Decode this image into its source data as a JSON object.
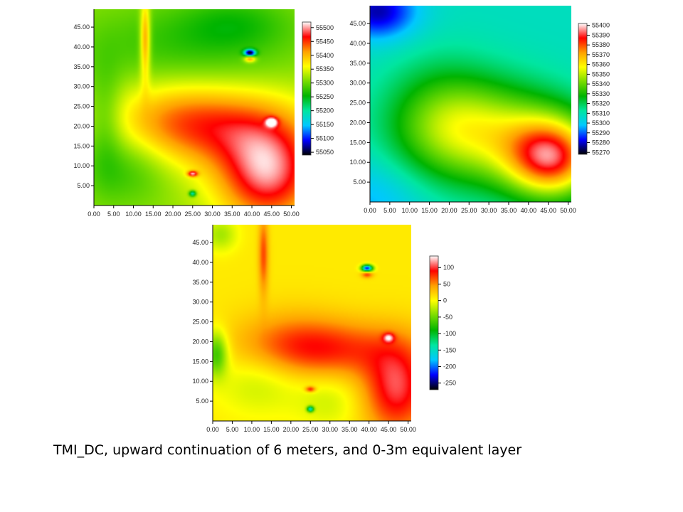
{
  "caption": "TMI_DC, upward continuation of 6 meters, and 0-3m equivalent layer",
  "chart_data": [
    {
      "type": "heatmap",
      "panel": "tmi-dc",
      "title": "",
      "xlabel": "",
      "ylabel": "",
      "xlim": [
        0,
        50.8
      ],
      "ylim": [
        0,
        49.5
      ],
      "x_ticks": [
        "0.00",
        "5.00",
        "10.00",
        "15.00",
        "20.00",
        "25.00",
        "30.00",
        "35.00",
        "40.00",
        "45.00",
        "50.00"
      ],
      "y_ticks": [
        "5.00",
        "10.00",
        "15.00",
        "20.00",
        "25.00",
        "30.00",
        "35.00",
        "40.00",
        "45.00"
      ],
      "colorbar": {
        "range": [
          55040,
          55520
        ],
        "ticks": [
          "55500",
          "55450",
          "55400",
          "55350",
          "55300",
          "55250",
          "55200",
          "55150",
          "55100",
          "55050"
        ],
        "colors": [
          "#000000",
          "#0000ff",
          "#00c8ff",
          "#00e6a0",
          "#00b400",
          "#78dc00",
          "#ffff00",
          "#ffa000",
          "#ff0000",
          "#ffffff"
        ]
      },
      "field": {
        "base": 55320,
        "features": [
          {
            "kind": "gauss",
            "x": 44,
            "y": 8,
            "sx": 9,
            "sy": 9,
            "a": 170
          },
          {
            "kind": "gauss",
            "x": 30,
            "y": 20,
            "sx": 16,
            "sy": 7,
            "a": 100
          },
          {
            "kind": "gauss",
            "x": 20,
            "y": 22,
            "sx": 12,
            "sy": 8,
            "a": 40
          },
          {
            "kind": "gauss",
            "x": 8,
            "y": 10,
            "sx": 8,
            "sy": 7,
            "a": -50
          },
          {
            "kind": "gauss",
            "x": 22,
            "y": 40,
            "sx": 20,
            "sy": 8,
            "a": -45
          },
          {
            "kind": "gauss",
            "x": 36,
            "y": 46,
            "sx": 10,
            "sy": 5,
            "a": -40
          },
          {
            "kind": "gauss",
            "x": 3,
            "y": 22,
            "sx": 3,
            "sy": 10,
            "a": -40
          },
          {
            "kind": "gauss",
            "x": 13,
            "y": 42,
            "sx": 0.9,
            "sy": 7,
            "a": 120
          },
          {
            "kind": "gauss",
            "x": 39.5,
            "y": 38.5,
            "sx": 1,
            "sy": 0.6,
            "a": -260
          },
          {
            "kind": "gauss",
            "x": 39.5,
            "y": 37,
            "sx": 1,
            "sy": 0.6,
            "a": 120
          },
          {
            "kind": "gauss",
            "x": 25,
            "y": 8,
            "sx": 0.9,
            "sy": 0.5,
            "a": 150
          },
          {
            "kind": "gauss",
            "x": 25,
            "y": 3,
            "sx": 0.6,
            "sy": 0.5,
            "a": -150
          },
          {
            "kind": "gauss",
            "x": 45,
            "y": 21,
            "sx": 1,
            "sy": 0.8,
            "a": 150
          }
        ]
      }
    },
    {
      "type": "heatmap",
      "panel": "upward-continuation-6m",
      "title": "",
      "xlabel": "",
      "ylabel": "",
      "xlim": [
        0,
        50.8
      ],
      "ylim": [
        0,
        49.5
      ],
      "x_ticks": [
        "0.00",
        "5.00",
        "10.00",
        "15.00",
        "20.00",
        "25.00",
        "30.00",
        "35.00",
        "40.00",
        "45.00",
        "50.00"
      ],
      "y_ticks": [
        "5.00",
        "10.00",
        "15.00",
        "20.00",
        "25.00",
        "30.00",
        "35.00",
        "40.00",
        "45.00"
      ],
      "colorbar": {
        "range": [
          55268,
          55402
        ],
        "ticks": [
          "55400",
          "55390",
          "55380",
          "55370",
          "55360",
          "55350",
          "55340",
          "55330",
          "55320",
          "55310",
          "55300",
          "55290",
          "55280",
          "55270"
        ],
        "colors": [
          "#000000",
          "#0000ff",
          "#00c8ff",
          "#00e6a0",
          "#00b400",
          "#78dc00",
          "#ffff00",
          "#ffa000",
          "#ff0000",
          "#ffffff"
        ]
      },
      "field": {
        "base": 55308,
        "features": [
          {
            "kind": "gauss",
            "x": 46,
            "y": 11,
            "sx": 8,
            "sy": 7,
            "a": 70
          },
          {
            "kind": "gauss",
            "x": 30,
            "y": 17,
            "sx": 14,
            "sy": 9,
            "a": 40
          },
          {
            "kind": "gauss",
            "x": 18,
            "y": 22,
            "sx": 10,
            "sy": 10,
            "a": 18
          },
          {
            "kind": "gauss",
            "x": 2,
            "y": 48,
            "sx": 7,
            "sy": 5,
            "a": -30
          },
          {
            "kind": "gauss",
            "x": 0,
            "y": 0,
            "sx": 10,
            "sy": 8,
            "a": -12
          }
        ]
      }
    },
    {
      "type": "heatmap",
      "panel": "equivalent-layer-0-3m",
      "title": "",
      "xlabel": "",
      "ylabel": "",
      "xlim": [
        0,
        50.8
      ],
      "ylim": [
        0,
        49.5
      ],
      "x_ticks": [
        "0.00",
        "5.00",
        "10.00",
        "15.00",
        "20.00",
        "25.00",
        "30.00",
        "35.00",
        "40.00",
        "45.00",
        "50.00"
      ],
      "y_ticks": [
        "5.00",
        "10.00",
        "15.00",
        "20.00",
        "25.00",
        "30.00",
        "35.00",
        "40.00",
        "45.00"
      ],
      "colorbar": {
        "range": [
          -270,
          135
        ],
        "ticks": [
          "100",
          "50",
          "0",
          "-50",
          "-100",
          "-150",
          "-200",
          "-250"
        ],
        "colors": [
          "#000000",
          "#0000ff",
          "#00c8ff",
          "#00e6a0",
          "#00b400",
          "#78dc00",
          "#ffff00",
          "#ffa000",
          "#ff0000",
          "#ffffff"
        ]
      },
      "field": {
        "base": 10,
        "features": [
          {
            "kind": "gauss",
            "x": 30,
            "y": 18,
            "sx": 14,
            "sy": 5,
            "a": 60
          },
          {
            "kind": "gauss",
            "x": 47,
            "y": 8,
            "sx": 6,
            "sy": 8,
            "a": 90
          },
          {
            "kind": "gauss",
            "x": 20,
            "y": 20,
            "sx": 10,
            "sy": 6,
            "a": 30
          },
          {
            "kind": "gauss",
            "x": 12,
            "y": 10,
            "sx": 8,
            "sy": 6,
            "a": -30
          },
          {
            "kind": "gauss",
            "x": 30,
            "y": 5,
            "sx": 6,
            "sy": 5,
            "a": -25
          },
          {
            "kind": "gauss",
            "x": 1,
            "y": 17,
            "sx": 2,
            "sy": 4,
            "a": -80
          },
          {
            "kind": "gauss",
            "x": 2,
            "y": 47,
            "sx": 3,
            "sy": 3,
            "a": -40
          },
          {
            "kind": "gauss",
            "x": 13,
            "y": 42,
            "sx": 0.9,
            "sy": 7,
            "a": 60
          },
          {
            "kind": "gauss",
            "x": 39.5,
            "y": 38.5,
            "sx": 1,
            "sy": 0.6,
            "a": -240
          },
          {
            "kind": "gauss",
            "x": 39.5,
            "y": 37,
            "sx": 1,
            "sy": 0.6,
            "a": 70
          },
          {
            "kind": "gauss",
            "x": 25,
            "y": 8,
            "sx": 0.9,
            "sy": 0.5,
            "a": 80
          },
          {
            "kind": "gauss",
            "x": 25,
            "y": 3,
            "sx": 0.6,
            "sy": 0.5,
            "a": -150
          },
          {
            "kind": "gauss",
            "x": 45,
            "y": 21,
            "sx": 1,
            "sy": 0.8,
            "a": 80
          }
        ]
      }
    }
  ]
}
